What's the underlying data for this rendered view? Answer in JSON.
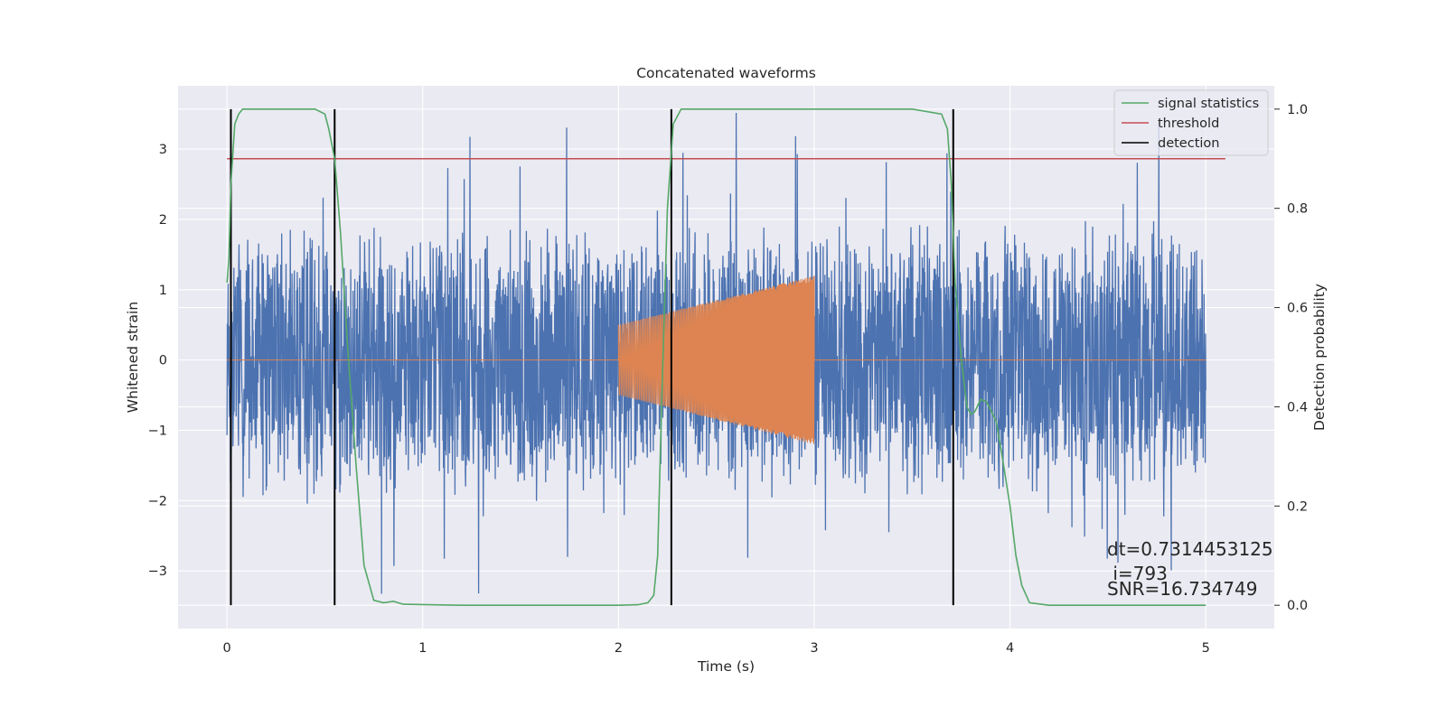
{
  "chart_data": {
    "type": "line",
    "title": "Concatenated waveforms",
    "xlabel": "Time (s)",
    "ylabel": "Whitened strain",
    "ylabel_right": "Detection probability",
    "xlim": [
      -0.25,
      5.35
    ],
    "ylim": [
      -3.82,
      3.9
    ],
    "ylim_right": [
      -0.047,
      1.047
    ],
    "x_ticks": [
      0,
      1,
      2,
      3,
      4,
      5
    ],
    "y_ticks": [
      -3,
      -2,
      -1,
      0,
      1,
      2,
      3
    ],
    "y_ticks_right": [
      0.0,
      0.2,
      0.4,
      0.6,
      0.8,
      1.0
    ],
    "grid": true,
    "legend_position": "top-right",
    "legend": [
      "signal statistics",
      "threshold",
      "detection"
    ],
    "colors": {
      "background": "#eaeaf2",
      "grid": "#ffffff",
      "strain": "#4c72b0",
      "waveform": "#dd8452",
      "signal_statistics": "#55a868",
      "threshold": "#c44e52",
      "detection": "#000000"
    },
    "strain": {
      "x_range": [
        0,
        5
      ],
      "typical_amplitude": 2.0,
      "extreme_range": [
        -3.45,
        3.6
      ]
    },
    "waveform": {
      "x_range": [
        2.0,
        3.0
      ],
      "amplitude_start": 0.5,
      "amplitude_end": 1.2
    },
    "signal_statistics": {
      "x": [
        0.0,
        0.01,
        0.02,
        0.04,
        0.06,
        0.08,
        0.1,
        0.15,
        0.3,
        0.45,
        0.5,
        0.52,
        0.55,
        0.58,
        0.62,
        0.66,
        0.7,
        0.75,
        0.8,
        0.85,
        0.9,
        1.2,
        1.6,
        2.0,
        2.1,
        2.15,
        2.18,
        2.2,
        2.22,
        2.25,
        2.28,
        2.32,
        2.4,
        3.0,
        3.5,
        3.65,
        3.68,
        3.7,
        3.72,
        3.75,
        3.78,
        3.8,
        3.82,
        3.85,
        3.88,
        3.9,
        3.93,
        3.96,
        4.0,
        4.03,
        4.06,
        4.1,
        4.2,
        4.6,
        5.0
      ],
      "y": [
        0.65,
        0.7,
        0.85,
        0.97,
        0.99,
        1.0,
        1.0,
        1.0,
        1.0,
        1.0,
        0.99,
        0.96,
        0.9,
        0.75,
        0.5,
        0.28,
        0.08,
        0.01,
        0.005,
        0.008,
        0.002,
        0.0,
        0.0,
        0.0,
        0.001,
        0.005,
        0.02,
        0.1,
        0.4,
        0.8,
        0.97,
        1.0,
        1.0,
        1.0,
        1.0,
        0.99,
        0.96,
        0.85,
        0.65,
        0.5,
        0.4,
        0.385,
        0.39,
        0.415,
        0.41,
        0.395,
        0.37,
        0.3,
        0.2,
        0.1,
        0.04,
        0.005,
        0.0,
        0.0,
        0.0
      ]
    },
    "threshold": {
      "x": [
        0.0,
        5.1
      ],
      "value": 0.9
    },
    "detections": [
      0.02,
      0.55,
      2.27,
      3.71
    ],
    "annotations": [
      "dt=0.7314453125",
      " i=793",
      "SNR=16.734749"
    ]
  }
}
